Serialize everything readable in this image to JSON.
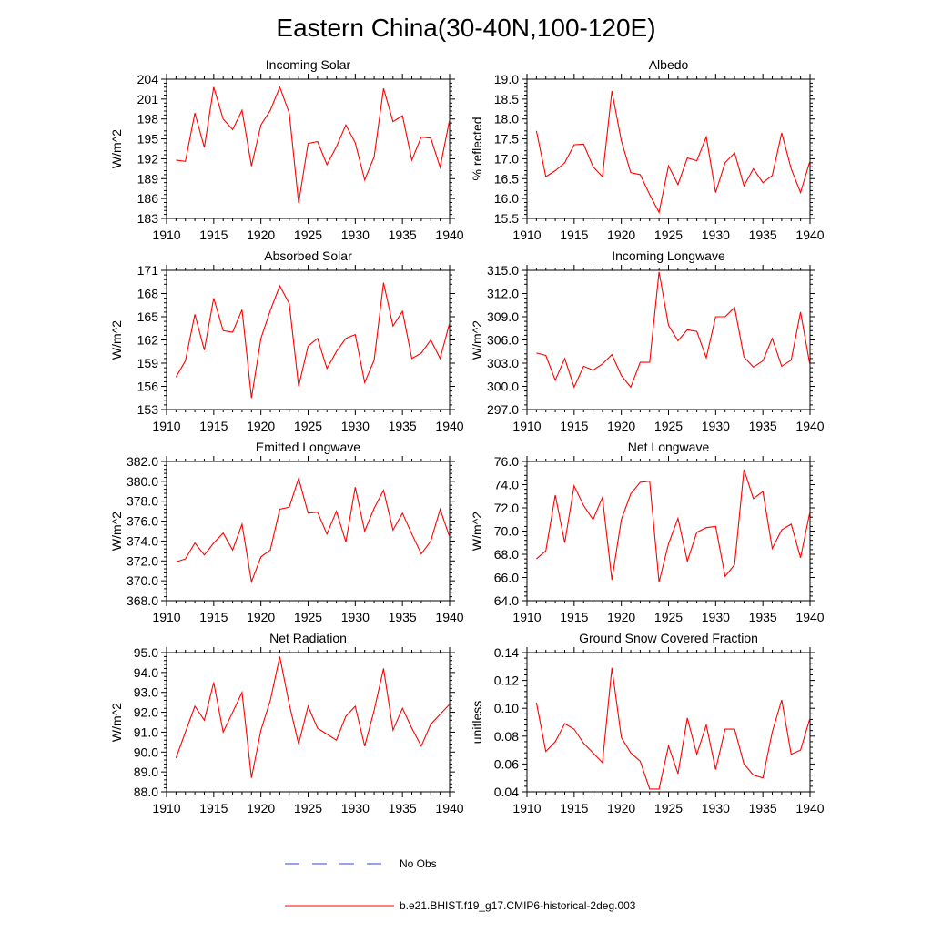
{
  "figure": {
    "title": "Eastern China(30-40N,100-120E)",
    "legend": {
      "obs_label": "No Obs",
      "model_label": "b.e21.BHIST.f19_g17.CMIP6-historical-2deg.003",
      "obs_color": "#3344cc",
      "model_color": "#ff0000"
    }
  },
  "chart_data": [
    {
      "type": "line",
      "title": "Incoming Solar",
      "ylabel": "W/m^2",
      "xlim": [
        1910,
        1940
      ],
      "ylim": [
        183,
        204
      ],
      "yticks": [
        "183",
        "186",
        "189",
        "192",
        "195",
        "198",
        "201",
        "204"
      ],
      "xticks": [
        "1910",
        "1915",
        "1920",
        "1925",
        "1930",
        "1935",
        "1940"
      ],
      "series": [
        {
          "x": [
            1911,
            1912,
            1913,
            1914,
            1915,
            1916,
            1917,
            1918,
            1919,
            1920,
            1921,
            1922,
            1923,
            1924,
            1925,
            1926,
            1927,
            1928,
            1929,
            1930,
            1931,
            1932,
            1933,
            1934,
            1935,
            1936,
            1937,
            1938,
            1939,
            1940
          ],
          "values": [
            191.8,
            191.6,
            198.9,
            193.7,
            202.8,
            198.0,
            196.4,
            199.3,
            190.9,
            197.1,
            199.3,
            202.8,
            198.9,
            185.3,
            194.3,
            194.6,
            191.1,
            193.8,
            197.1,
            194.4,
            188.8,
            192.3,
            202.6,
            197.6,
            198.5,
            191.8,
            195.3,
            195.1,
            190.7,
            197.9
          ]
        }
      ]
    },
    {
      "type": "line",
      "title": "Albedo",
      "ylabel": "% reflected",
      "xlim": [
        1910,
        1940
      ],
      "ylim": [
        15.5,
        19.0
      ],
      "yticks": [
        "15.5",
        "16.0",
        "16.5",
        "17.0",
        "17.5",
        "18.0",
        "18.5",
        "19.0"
      ],
      "xticks": [
        "1910",
        "1915",
        "1920",
        "1925",
        "1930",
        "1935",
        "1940"
      ],
      "series": [
        {
          "x": [
            1911,
            1912,
            1913,
            1914,
            1915,
            1916,
            1917,
            1918,
            1919,
            1920,
            1921,
            1922,
            1923,
            1924,
            1925,
            1926,
            1927,
            1928,
            1929,
            1930,
            1931,
            1932,
            1933,
            1934,
            1935,
            1936,
            1937,
            1938,
            1939,
            1940
          ],
          "values": [
            17.7,
            16.55,
            16.7,
            16.9,
            17.35,
            17.37,
            16.8,
            16.55,
            18.7,
            17.45,
            16.65,
            16.6,
            16.1,
            15.65,
            16.82,
            16.35,
            17.02,
            16.95,
            17.55,
            16.15,
            16.9,
            17.15,
            16.32,
            16.75,
            16.4,
            16.58,
            17.65,
            16.75,
            16.15,
            16.95
          ]
        }
      ]
    },
    {
      "type": "line",
      "title": "Absorbed Solar",
      "ylabel": "W/m^2",
      "xlim": [
        1910,
        1940
      ],
      "ylim": [
        153,
        171
      ],
      "yticks": [
        "153",
        "156",
        "159",
        "162",
        "165",
        "168",
        "171"
      ],
      "xticks": [
        "1910",
        "1915",
        "1920",
        "1925",
        "1930",
        "1935",
        "1940"
      ],
      "series": [
        {
          "x": [
            1911,
            1912,
            1913,
            1914,
            1915,
            1916,
            1917,
            1918,
            1919,
            1920,
            1921,
            1922,
            1923,
            1924,
            1925,
            1926,
            1927,
            1928,
            1929,
            1930,
            1931,
            1932,
            1933,
            1934,
            1935,
            1936,
            1937,
            1938,
            1939,
            1940
          ],
          "values": [
            157.2,
            159.3,
            165.3,
            160.7,
            167.4,
            163.2,
            163.0,
            165.9,
            154.5,
            162.2,
            165.8,
            169.0,
            166.7,
            156.0,
            161.2,
            162.2,
            158.3,
            160.5,
            162.2,
            162.7,
            156.5,
            159.4,
            169.4,
            163.8,
            165.7,
            159.6,
            160.3,
            162.0,
            159.6,
            164.2
          ]
        }
      ]
    },
    {
      "type": "line",
      "title": "Incoming Longwave",
      "ylabel": "W/m^2",
      "xlim": [
        1910,
        1940
      ],
      "ylim": [
        297.0,
        315.0
      ],
      "yticks": [
        "297.0",
        "300.0",
        "303.0",
        "306.0",
        "309.0",
        "312.0",
        "315.0"
      ],
      "xticks": [
        "1910",
        "1915",
        "1920",
        "1925",
        "1930",
        "1935",
        "1940"
      ],
      "series": [
        {
          "x": [
            1911,
            1912,
            1913,
            1914,
            1915,
            1916,
            1917,
            1918,
            1919,
            1920,
            1921,
            1922,
            1923,
            1924,
            1925,
            1926,
            1927,
            1928,
            1929,
            1930,
            1931,
            1932,
            1933,
            1934,
            1935,
            1936,
            1937,
            1938,
            1939,
            1940
          ],
          "values": [
            304.3,
            304.0,
            300.8,
            303.6,
            299.9,
            302.6,
            302.1,
            302.9,
            304.1,
            301.4,
            299.9,
            303.1,
            303.1,
            314.8,
            307.9,
            305.9,
            307.3,
            307.1,
            303.7,
            309.0,
            309.0,
            310.2,
            303.8,
            302.5,
            303.3,
            306.2,
            302.6,
            303.4,
            309.6,
            302.7
          ]
        }
      ]
    },
    {
      "type": "line",
      "title": "Emitted Longwave",
      "ylabel": "W/m^2",
      "xlim": [
        1910,
        1940
      ],
      "ylim": [
        368.0,
        382.0
      ],
      "yticks": [
        "368.0",
        "370.0",
        "372.0",
        "374.0",
        "376.0",
        "378.0",
        "380.0",
        "382.0"
      ],
      "xticks": [
        "1910",
        "1915",
        "1920",
        "1925",
        "1930",
        "1935",
        "1940"
      ],
      "series": [
        {
          "x": [
            1911,
            1912,
            1913,
            1914,
            1915,
            1916,
            1917,
            1918,
            1919,
            1920,
            1921,
            1922,
            1923,
            1924,
            1925,
            1926,
            1927,
            1928,
            1929,
            1930,
            1931,
            1932,
            1933,
            1934,
            1935,
            1936,
            1937,
            1938,
            1939,
            1940
          ],
          "values": [
            371.9,
            372.2,
            373.8,
            372.6,
            373.8,
            374.8,
            373.1,
            375.7,
            369.9,
            372.4,
            373.1,
            377.2,
            377.4,
            380.3,
            376.8,
            376.9,
            374.7,
            377.0,
            373.9,
            379.4,
            375.0,
            377.3,
            379.1,
            375.1,
            376.8,
            374.7,
            372.7,
            374.0,
            377.2,
            374.4
          ]
        }
      ]
    },
    {
      "type": "line",
      "title": "Net Longwave",
      "ylabel": "W/m^2",
      "xlim": [
        1910,
        1940
      ],
      "ylim": [
        64.0,
        76.0
      ],
      "yticks": [
        "64.0",
        "66.0",
        "68.0",
        "70.0",
        "72.0",
        "74.0",
        "76.0"
      ],
      "xticks": [
        "1910",
        "1915",
        "1920",
        "1925",
        "1930",
        "1935",
        "1940"
      ],
      "series": [
        {
          "x": [
            1911,
            1912,
            1913,
            1914,
            1915,
            1916,
            1917,
            1918,
            1919,
            1920,
            1921,
            1922,
            1923,
            1924,
            1925,
            1926,
            1927,
            1928,
            1929,
            1930,
            1931,
            1932,
            1933,
            1934,
            1935,
            1936,
            1937,
            1938,
            1939,
            1940
          ],
          "values": [
            67.6,
            68.3,
            73.1,
            69.0,
            73.9,
            72.2,
            71.0,
            72.9,
            65.8,
            71.0,
            73.2,
            74.2,
            74.3,
            65.6,
            68.9,
            71.1,
            67.4,
            69.9,
            70.3,
            70.4,
            66.1,
            67.1,
            75.3,
            72.8,
            73.4,
            68.5,
            70.1,
            70.6,
            67.7,
            71.7
          ]
        }
      ]
    },
    {
      "type": "line",
      "title": "Net Radiation",
      "ylabel": "W/m^2",
      "xlim": [
        1910,
        1940
      ],
      "ylim": [
        88.0,
        95.0
      ],
      "yticks": [
        "88.0",
        "89.0",
        "90.0",
        "91.0",
        "92.0",
        "93.0",
        "94.0",
        "95.0"
      ],
      "xticks": [
        "1910",
        "1915",
        "1920",
        "1925",
        "1930",
        "1935",
        "1940"
      ],
      "series": [
        {
          "x": [
            1911,
            1912,
            1913,
            1914,
            1915,
            1916,
            1917,
            1918,
            1919,
            1920,
            1921,
            1922,
            1923,
            1924,
            1925,
            1926,
            1927,
            1928,
            1929,
            1930,
            1931,
            1932,
            1933,
            1934,
            1935,
            1936,
            1937,
            1938,
            1939,
            1940
          ],
          "values": [
            89.7,
            91.0,
            92.3,
            91.6,
            93.5,
            91.0,
            92.0,
            93.0,
            88.7,
            91.1,
            92.6,
            94.8,
            92.4,
            90.4,
            92.3,
            91.2,
            90.9,
            90.6,
            91.8,
            92.3,
            90.3,
            92.1,
            94.2,
            91.1,
            92.2,
            91.2,
            90.3,
            91.4,
            91.9,
            92.4
          ]
        }
      ]
    },
    {
      "type": "line",
      "title": "Ground Snow Covered Fraction",
      "ylabel": "unitless",
      "xlim": [
        1910,
        1940
      ],
      "ylim": [
        0.04,
        0.14
      ],
      "yticks": [
        "0.04",
        "0.06",
        "0.08",
        "0.10",
        "0.12",
        "0.14"
      ],
      "xticks": [
        "1910",
        "1915",
        "1920",
        "1925",
        "1930",
        "1935",
        "1940"
      ],
      "series": [
        {
          "x": [
            1911,
            1912,
            1913,
            1914,
            1915,
            1916,
            1917,
            1918,
            1919,
            1920,
            1921,
            1922,
            1923,
            1924,
            1925,
            1926,
            1927,
            1928,
            1929,
            1930,
            1931,
            1932,
            1933,
            1934,
            1935,
            1936,
            1937,
            1938,
            1939,
            1940
          ],
          "values": [
            0.104,
            0.069,
            0.076,
            0.089,
            0.085,
            0.075,
            0.068,
            0.061,
            0.129,
            0.079,
            0.068,
            0.062,
            0.042,
            0.042,
            0.073,
            0.053,
            0.093,
            0.067,
            0.088,
            0.056,
            0.085,
            0.085,
            0.06,
            0.052,
            0.05,
            0.083,
            0.106,
            0.067,
            0.07,
            0.093
          ]
        }
      ]
    }
  ]
}
